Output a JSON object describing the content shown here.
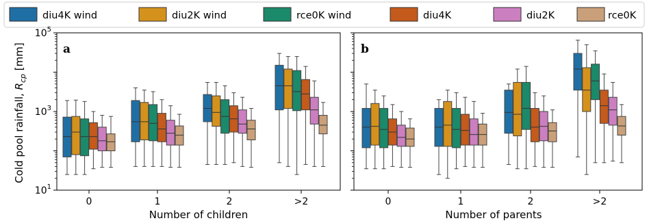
{
  "legend": {
    "items": [
      {
        "label": "diu4K wind",
        "color": "#1f6fa5"
      },
      {
        "label": "diu2K wind",
        "color": "#d4921d"
      },
      {
        "label": "rce0K wind",
        "color": "#1a8a6a"
      },
      {
        "label": "diu4K",
        "color": "#c45a1c"
      },
      {
        "label": "diu2K",
        "color": "#cc7fc0"
      },
      {
        "label": "rce0K",
        "color": "#c9a07a"
      }
    ]
  },
  "chart_data": [
    {
      "type": "box",
      "panel_label": "a",
      "xlabel": "Number of children",
      "ylabel": "Cold pool rainfall, R_cp [mm]",
      "yscale": "log",
      "ylim": [
        10,
        100000
      ],
      "yticks": [
        "10^1",
        "10^3",
        "10^5"
      ],
      "categories": [
        "0",
        "1",
        "2",
        ">2"
      ],
      "series": [
        {
          "name": "diu4K wind",
          "boxes": [
            {
              "whislo": 25,
              "q1": 70,
              "med": 230,
              "q3": 720,
              "whishi": 1900
            },
            {
              "whislo": 40,
              "q1": 170,
              "med": 550,
              "q3": 1900,
              "whishi": 4000
            },
            {
              "whislo": 45,
              "q1": 550,
              "med": 1200,
              "q3": 2700,
              "whishi": 5500
            },
            {
              "whislo": 50,
              "q1": 1100,
              "med": 4500,
              "q3": 15000,
              "whishi": 30000
            }
          ]
        },
        {
          "name": "diu2K wind",
          "boxes": [
            {
              "whislo": 25,
              "q1": 80,
              "med": 300,
              "q3": 750,
              "whishi": 1950
            },
            {
              "whislo": 40,
              "q1": 190,
              "med": 550,
              "q3": 1700,
              "whishi": 3500
            },
            {
              "whislo": 45,
              "q1": 420,
              "med": 950,
              "q3": 2500,
              "whishi": 5500
            },
            {
              "whislo": 40,
              "q1": 1200,
              "med": 4500,
              "q3": 12000,
              "whishi": 25000
            }
          ]
        },
        {
          "name": "rce0K wind",
          "boxes": [
            {
              "whislo": 25,
              "q1": 75,
              "med": 230,
              "q3": 650,
              "whishi": 1800
            },
            {
              "whislo": 40,
              "q1": 180,
              "med": 500,
              "q3": 1500,
              "whishi": 3200
            },
            {
              "whislo": 45,
              "q1": 280,
              "med": 750,
              "q3": 2000,
              "whishi": 4500
            },
            {
              "whislo": 25,
              "q1": 1050,
              "med": 3200,
              "q3": 11000,
              "whishi": 25000
            }
          ]
        },
        {
          "name": "diu4K",
          "boxes": [
            {
              "whislo": 35,
              "q1": 110,
              "med": 230,
              "q3": 520,
              "whishi": 1000
            },
            {
              "whislo": 40,
              "q1": 170,
              "med": 360,
              "q3": 900,
              "whishi": 2000
            },
            {
              "whislo": 50,
              "q1": 300,
              "med": 650,
              "q3": 1400,
              "whishi": 3000
            },
            {
              "whislo": 45,
              "q1": 1100,
              "med": 2800,
              "q3": 6500,
              "whishi": 14000
            }
          ]
        },
        {
          "name": "diu2K",
          "boxes": [
            {
              "whislo": 38,
              "q1": 100,
              "med": 180,
              "q3": 400,
              "whishi": 800
            },
            {
              "whislo": 38,
              "q1": 140,
              "med": 280,
              "q3": 600,
              "whishi": 1400
            },
            {
              "whislo": 40,
              "q1": 280,
              "med": 480,
              "q3": 1100,
              "whishi": 2300
            },
            {
              "whislo": 40,
              "q1": 480,
              "med": 1100,
              "q3": 2300,
              "whishi": 6000
            }
          ]
        },
        {
          "name": "rce0K",
          "boxes": [
            {
              "whislo": 38,
              "q1": 100,
              "med": 170,
              "q3": 270,
              "whishi": 750
            },
            {
              "whislo": 38,
              "q1": 140,
              "med": 250,
              "q3": 430,
              "whishi": 850
            },
            {
              "whislo": 38,
              "q1": 190,
              "med": 360,
              "q3": 600,
              "whishi": 1200
            },
            {
              "whislo": 40,
              "q1": 270,
              "med": 450,
              "q3": 800,
              "whishi": 1700
            }
          ]
        }
      ]
    },
    {
      "type": "box",
      "panel_label": "b",
      "xlabel": "Number of parents",
      "ylabel": "",
      "yscale": "log",
      "ylim": [
        10,
        100000
      ],
      "categories": [
        "0",
        "1",
        "2",
        ">2"
      ],
      "series": [
        {
          "name": "diu4K wind",
          "boxes": [
            {
              "whislo": 35,
              "q1": 120,
              "med": 400,
              "q3": 1200,
              "whishi": 5000
            },
            {
              "whislo": 25,
              "q1": 130,
              "med": 400,
              "q3": 1200,
              "whishi": 2000
            },
            {
              "whislo": 45,
              "q1": 280,
              "med": 950,
              "q3": 3500,
              "whishi": 5000
            },
            {
              "whislo": 70,
              "q1": 3500,
              "med": 12000,
              "q3": 30000,
              "whishi": 65000
            }
          ]
        },
        {
          "name": "diu2K wind",
          "boxes": [
            {
              "whislo": 35,
              "q1": 140,
              "med": 420,
              "q3": 1600,
              "whishi": 3500
            },
            {
              "whislo": 20,
              "q1": 130,
              "med": 450,
              "q3": 1800,
              "whishi": 3500
            },
            {
              "whislo": 35,
              "q1": 240,
              "med": 850,
              "q3": 5500,
              "whishi": 12000
            },
            {
              "whislo": 25,
              "q1": 1000,
              "med": 3500,
              "q3": 13000,
              "whishi": 50000
            }
          ]
        },
        {
          "name": "rce0K wind",
          "boxes": [
            {
              "whislo": 35,
              "q1": 120,
              "med": 350,
              "q3": 1200,
              "whishi": 2500
            },
            {
              "whislo": 35,
              "q1": 120,
              "med": 350,
              "q3": 1200,
              "whishi": 3000
            },
            {
              "whislo": 35,
              "q1": 350,
              "med": 1200,
              "q3": 5500,
              "whishi": 14000
            },
            {
              "whislo": 50,
              "q1": 2000,
              "med": 6000,
              "q3": 16000,
              "whishi": 35000
            }
          ]
        },
        {
          "name": "diu4K",
          "boxes": [
            {
              "whislo": 40,
              "q1": 140,
              "med": 300,
              "q3": 650,
              "whishi": 1500
            },
            {
              "whislo": 40,
              "q1": 140,
              "med": 330,
              "q3": 850,
              "whishi": 2300
            },
            {
              "whislo": 40,
              "q1": 170,
              "med": 400,
              "q3": 1200,
              "whishi": 3000
            },
            {
              "whislo": 50,
              "q1": 500,
              "med": 1400,
              "q3": 3500,
              "whishi": 9000
            }
          ]
        },
        {
          "name": "diu2K",
          "boxes": [
            {
              "whislo": 38,
              "q1": 130,
              "med": 220,
              "q3": 450,
              "whishi": 1000
            },
            {
              "whislo": 38,
              "q1": 140,
              "med": 260,
              "q3": 650,
              "whishi": 1800
            },
            {
              "whislo": 38,
              "q1": 180,
              "med": 420,
              "q3": 1000,
              "whishi": 2500
            },
            {
              "whislo": 55,
              "q1": 450,
              "med": 1100,
              "q3": 2300,
              "whishi": 5500
            }
          ]
        },
        {
          "name": "rce0K",
          "boxes": [
            {
              "whislo": 38,
              "q1": 130,
              "med": 200,
              "q3": 380,
              "whishi": 650
            },
            {
              "whislo": 38,
              "q1": 140,
              "med": 260,
              "q3": 480,
              "whishi": 900
            },
            {
              "whislo": 38,
              "q1": 170,
              "med": 320,
              "q3": 520,
              "whishi": 1100
            },
            {
              "whislo": 50,
              "q1": 250,
              "med": 430,
              "q3": 750,
              "whishi": 1500
            }
          ]
        }
      ]
    }
  ]
}
